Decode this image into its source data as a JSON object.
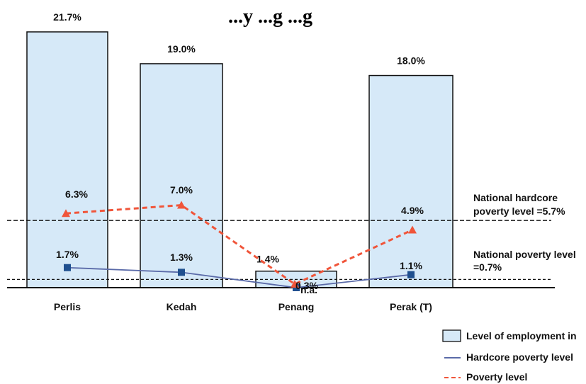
{
  "chart_data": {
    "type": "bar",
    "title": "...y ...g ...g",
    "categories": [
      "Perlis",
      "Kedah",
      "Penang",
      "Perak (T)"
    ],
    "series": [
      {
        "name": "Level of employment in",
        "type": "bar",
        "values": [
          21.7,
          19.0,
          1.4,
          18.0
        ],
        "labels": [
          "21.7%",
          "19.0%",
          "1.4%",
          "18.0%"
        ]
      },
      {
        "name": "Poverty level",
        "type": "line",
        "style": "dashed",
        "values": [
          6.3,
          7.0,
          0.3,
          4.9
        ],
        "labels": [
          "6.3%",
          "7.0%",
          "0.3%",
          "4.9%"
        ]
      },
      {
        "name": "Hardcore poverty level",
        "type": "line",
        "style": "solid",
        "values": [
          1.7,
          1.3,
          0.0,
          1.1
        ],
        "labels": [
          "1.7%",
          "1.3%",
          "n.a.",
          "1.1%"
        ]
      }
    ],
    "reference_lines": [
      {
        "label": "National hardcore poverty level =5.7%",
        "value": 5.7
      },
      {
        "label": "National poverty level =0.7%",
        "value": 0.7
      }
    ],
    "ylim": [
      0,
      23
    ],
    "legend_position": "bottom-right",
    "colors": {
      "bar_fill": "#d6e9f8",
      "bar_stroke": "#111111",
      "poverty": "#f0553a",
      "hardcore": "#5a6aa8",
      "marker_hardcore": "#1f4f8f"
    }
  }
}
